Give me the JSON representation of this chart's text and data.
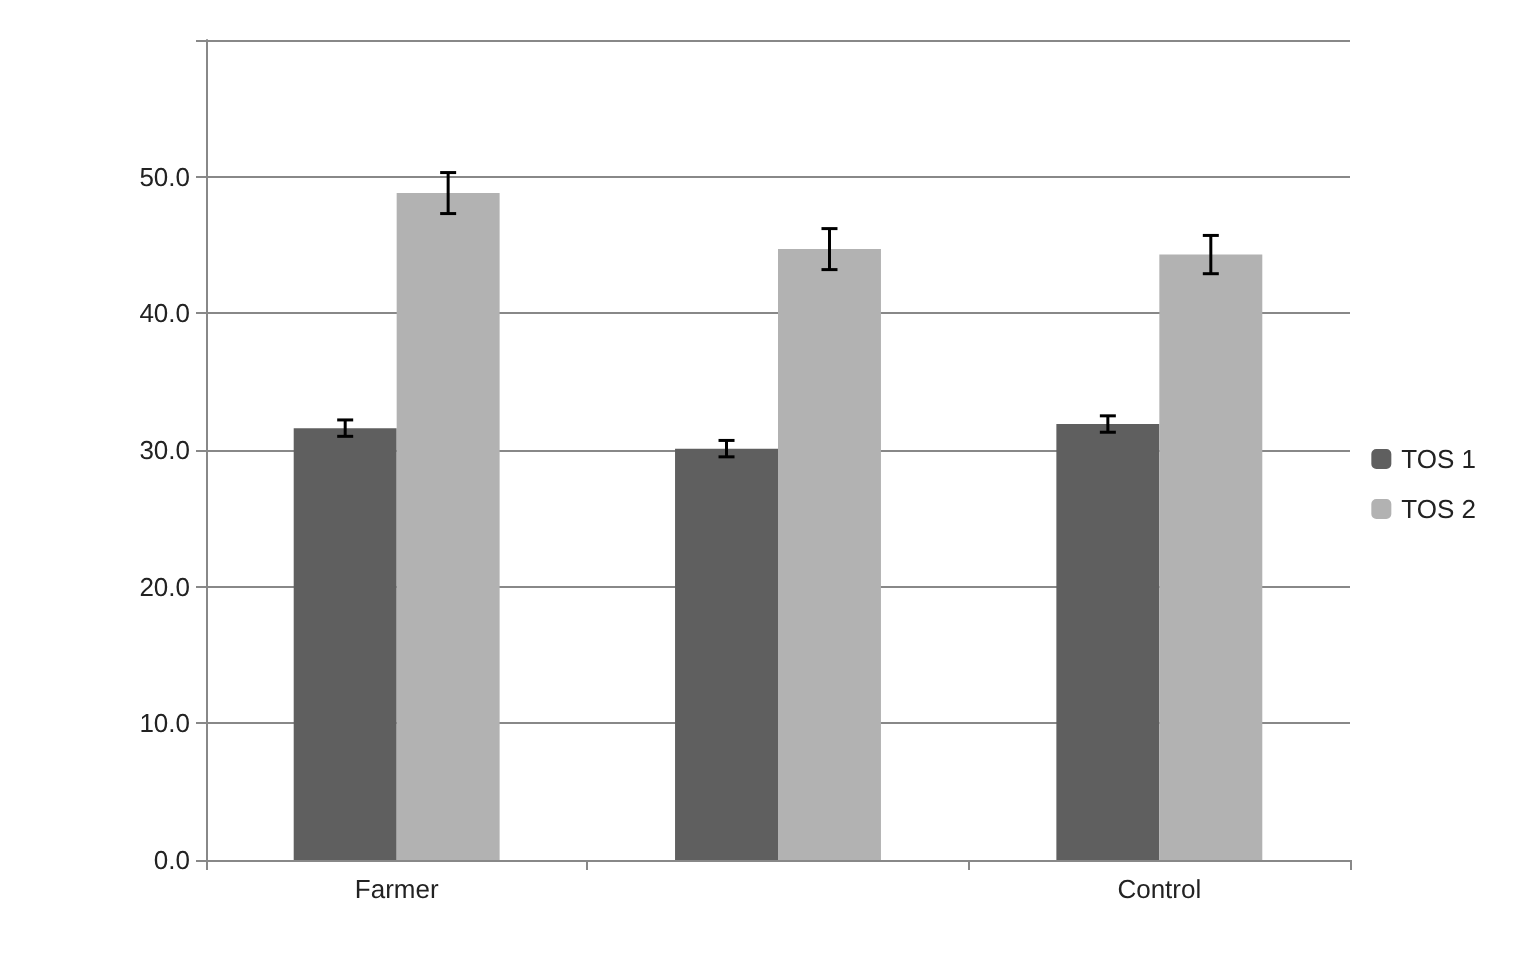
{
  "chart_data": {
    "type": "bar",
    "categories": [
      "Farmer",
      null,
      "Control"
    ],
    "series": [
      {
        "name": "TOS 1",
        "color": "#5f5f5f",
        "values": [
          31.6,
          30.1,
          31.9
        ],
        "errors": [
          0.6,
          0.6,
          0.6
        ]
      },
      {
        "name": "TOS 2",
        "color": "#b2b2b2",
        "values": [
          48.8,
          44.7,
          44.3
        ],
        "errors": [
          1.5,
          1.5,
          1.4
        ]
      }
    ],
    "ylim": [
      0,
      60
    ],
    "yticks": [
      {
        "value": 0,
        "label": "0.0"
      },
      {
        "value": 10,
        "label": "10.0"
      },
      {
        "value": 20,
        "label": "20.0"
      },
      {
        "value": 30,
        "label": "30.0"
      },
      {
        "value": 40,
        "label": "40.0"
      },
      {
        "value": 50,
        "label": "50.0"
      },
      {
        "value": 60,
        "label": null
      }
    ],
    "grid": "y",
    "legend": "right"
  }
}
